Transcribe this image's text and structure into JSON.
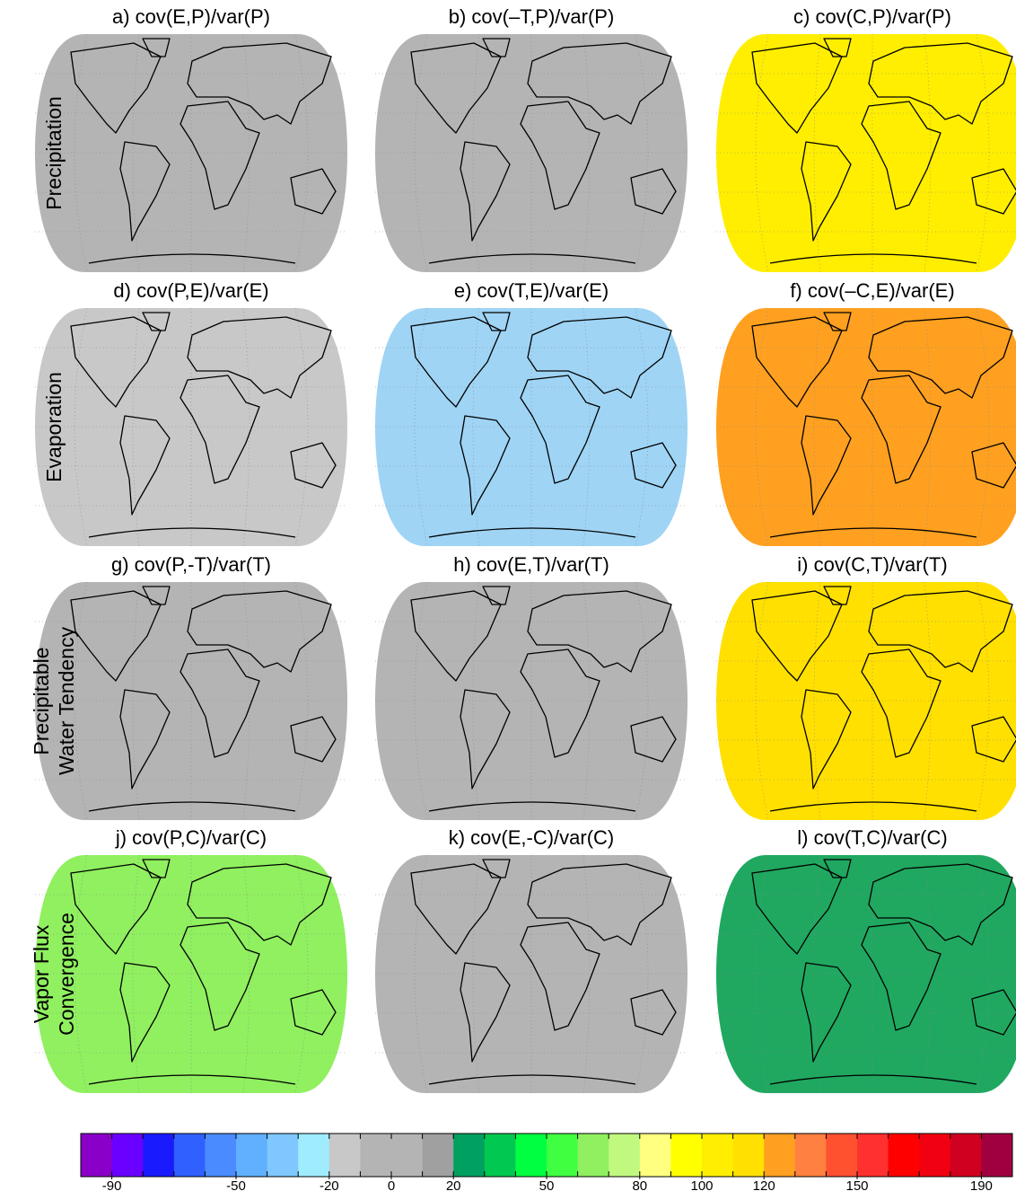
{
  "panels": [
    {
      "title": "a) cov(E,P)/var(P)",
      "color": "#b4b4b4"
    },
    {
      "title": "b) cov(–T,P)/var(P)",
      "color": "#b4b4b4"
    },
    {
      "title": "c) cov(C,P)/var(P)",
      "color": "#ffee00"
    },
    {
      "title": "d) cov(P,E)/var(E)",
      "color": "#c8c8c8"
    },
    {
      "title": "e) cov(T,E)/var(E)",
      "color": "#9fd4f5"
    },
    {
      "title": "f) cov(–C,E)/var(E)",
      "color": "#ffa020"
    },
    {
      "title": "g) cov(P,-T)/var(T)",
      "color": "#b4b4b4"
    },
    {
      "title": "h) cov(E,T)/var(T)",
      "color": "#b4b4b4"
    },
    {
      "title": "i) cov(C,T)/var(T)",
      "color": "#ffe000"
    },
    {
      "title": "j) cov(P,C)/var(C)",
      "color": "#90f060"
    },
    {
      "title": "k) cov(E,-C)/var(C)",
      "color": "#b4b4b4"
    },
    {
      "title": "l) cov(T,C)/var(C)",
      "color": "#20a860"
    }
  ],
  "rows": [
    {
      "label": [
        "Precipitation"
      ]
    },
    {
      "label": [
        "Evaporation"
      ]
    },
    {
      "label": [
        "Precipitable",
        "Water Tendency"
      ]
    },
    {
      "label": [
        "Vapor Flux",
        "Convergence"
      ]
    }
  ],
  "colorbar": {
    "xlim": [
      -100,
      200
    ],
    "xticks": [
      -90,
      -50,
      -20,
      0,
      20,
      50,
      80,
      100,
      120,
      150,
      190
    ],
    "colors": [
      "#8a00c8",
      "#6a00ff",
      "#1a1aff",
      "#3060ff",
      "#4a8cff",
      "#60b0ff",
      "#7ec8ff",
      "#a0ecff",
      "#c8c8c8",
      "#b4b4b4",
      "#b4b4b4",
      "#a0a0a0",
      "#00a060",
      "#00c850",
      "#00ff40",
      "#40ff40",
      "#90f060",
      "#c0f880",
      "#ffff80",
      "#ffff00",
      "#ffee00",
      "#ffe000",
      "#ffa020",
      "#ff8040",
      "#ff5030",
      "#ff3030",
      "#ff0000",
      "#f00010",
      "#d00020",
      "#a00040"
    ]
  }
}
